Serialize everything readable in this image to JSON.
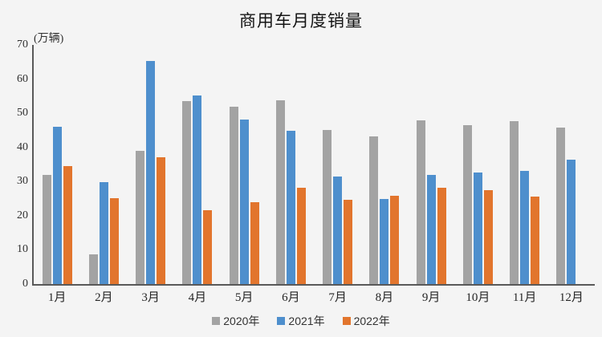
{
  "chart_data": {
    "type": "bar",
    "title": "商用车月度销量",
    "ylabel": "(万辆)",
    "xlabel": "",
    "categories": [
      "1月",
      "2月",
      "3月",
      "4月",
      "5月",
      "6月",
      "7月",
      "8月",
      "9月",
      "10月",
      "11月",
      "12月"
    ],
    "series": [
      {
        "name": "2020年",
        "color": "#A3A3A3",
        "values": [
          32.0,
          8.6,
          39.0,
          53.6,
          52.0,
          53.8,
          45.0,
          43.2,
          47.9,
          46.6,
          47.6,
          45.8
        ]
      },
      {
        "name": "2021年",
        "color": "#4E8FCD",
        "values": [
          46.0,
          29.8,
          65.4,
          55.1,
          48.2,
          44.8,
          31.4,
          24.8,
          31.9,
          32.7,
          33.1,
          36.4
        ]
      },
      {
        "name": "2022年",
        "color": "#E2752D",
        "values": [
          34.5,
          25.1,
          37.1,
          21.7,
          24.0,
          28.3,
          24.7,
          25.8,
          28.1,
          27.5,
          25.5,
          null
        ]
      }
    ],
    "ylim": [
      0,
      70
    ],
    "ytick_step": 10,
    "grid": false,
    "legend_position": "bottom"
  },
  "colors": {
    "background": "#F4F4F4",
    "axis": "#595959",
    "tick_text": "#303030"
  }
}
